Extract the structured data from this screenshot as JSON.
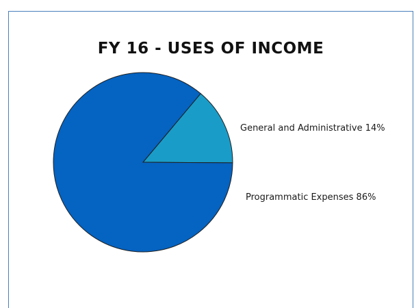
{
  "chart_data": {
    "type": "pie",
    "title": "FY 16 - USES OF INCOME",
    "slices": [
      {
        "name": "General and Administrative",
        "value": 14,
        "label": "General and Administrative 14%",
        "color": "#1a9cc8"
      },
      {
        "name": "Programmatic Expenses",
        "value": 86,
        "label": "Programmatic Expenses 86%",
        "color": "#0563c1"
      }
    ],
    "legend": "none"
  }
}
